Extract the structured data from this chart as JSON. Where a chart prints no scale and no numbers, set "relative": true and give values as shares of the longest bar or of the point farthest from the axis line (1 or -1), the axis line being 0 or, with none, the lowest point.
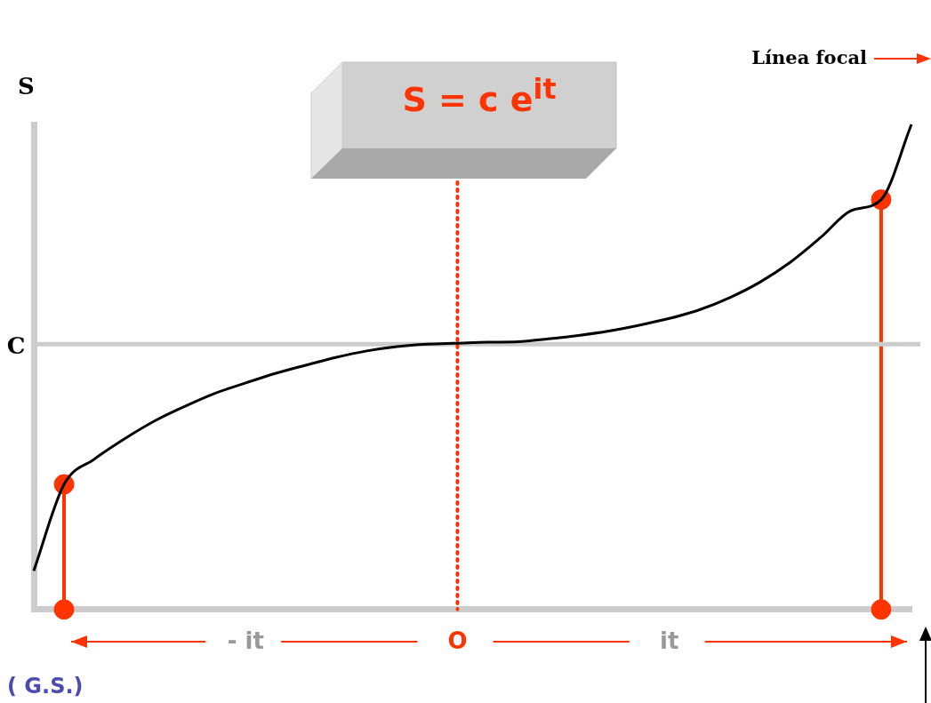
{
  "chart_data": {
    "type": "line",
    "title": "S = c e$^{it}$",
    "ylabel": "S",
    "relative": true,
    "legend": false,
    "grid": false,
    "categories": [
      null,
      null,
      null,
      null,
      null,
      null,
      null,
      "- it",
      null,
      null,
      null,
      null,
      null,
      null,
      "O",
      null,
      null,
      null,
      null,
      null,
      null,
      "it",
      null,
      null,
      null,
      null,
      null,
      null,
      null,
      null
    ],
    "series": [
      {
        "color": "#000000",
        "marker": "none",
        "line_style": "solid",
        "values": [
          0.08,
          0.258,
          0.31,
          0.352,
          0.389,
          0.419,
          0.446,
          0.467,
          0.487,
          0.504,
          0.52,
          0.533,
          0.542,
          0.547,
          0.549,
          0.551,
          0.552,
          0.558,
          0.565,
          0.574,
          0.586,
          0.6,
          0.618,
          0.643,
          0.675,
          0.716,
          0.767,
          0.822,
          0.845,
          1
        ]
      },
      {
        "type": "lollipop",
        "color": "#ff3300",
        "marker": "circle",
        "values": [
          null,
          0.258,
          null,
          null,
          null,
          null,
          null,
          null,
          null,
          null,
          null,
          null,
          null,
          null,
          null,
          null,
          null,
          null,
          null,
          null,
          null,
          null,
          null,
          null,
          null,
          null,
          null,
          null,
          0.845,
          null
        ]
      },
      {
        "type": "scatter",
        "color": "#ff3300",
        "marker": "circle",
        "values": [
          null,
          0,
          null,
          null,
          null,
          null,
          null,
          null,
          null,
          null,
          null,
          null,
          null,
          null,
          null,
          null,
          null,
          null,
          null,
          null,
          null,
          null,
          null,
          null,
          null,
          null,
          null,
          null,
          0,
          null
        ]
      }
    ],
    "ref_lines": [
      {
        "axis": "y",
        "value": 0.547,
        "label": "C",
        "color": "#cccccc",
        "line_style": "solid"
      },
      {
        "axis": "x",
        "value": "O",
        "color": "#ff3300",
        "line_style": "dotted"
      }
    ],
    "annotations": [
      "Línea focal",
      "( G.S.)"
    ]
  }
}
